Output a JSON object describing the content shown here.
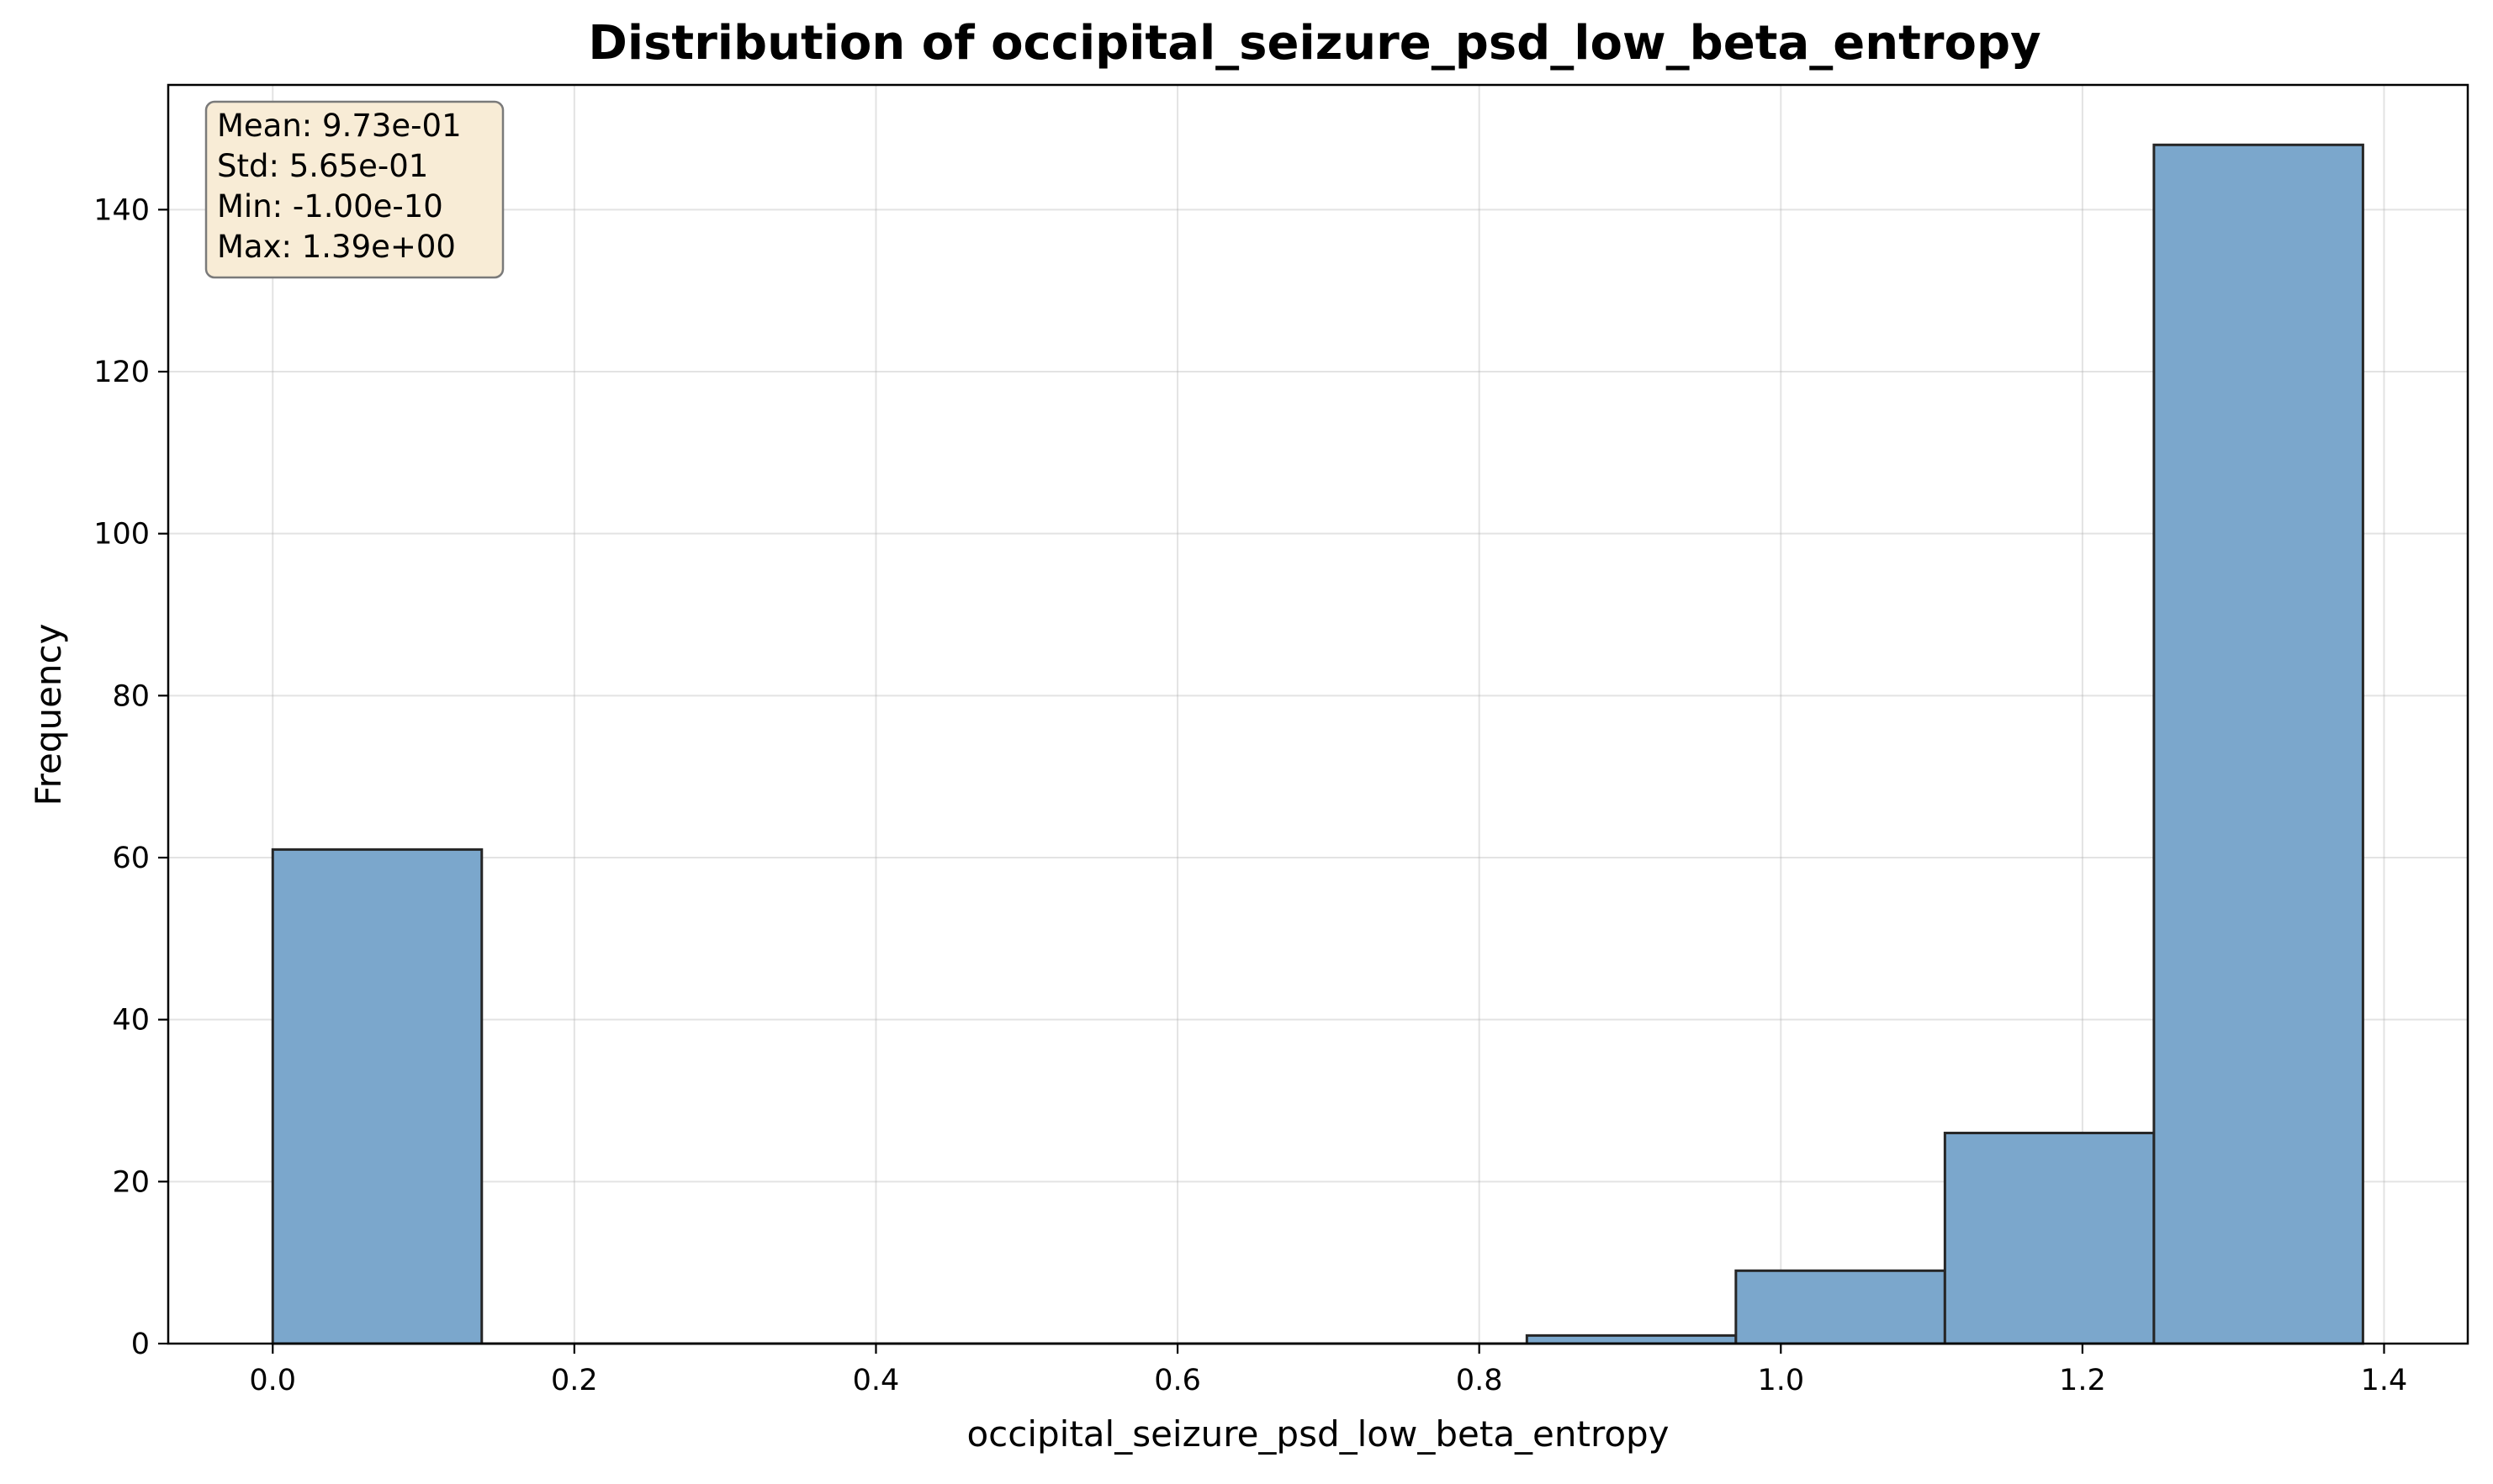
{
  "chart_data": {
    "type": "bar",
    "title": "Distribution of occipital_seizure_psd_low_beta_entropy",
    "xlabel": "occipital_seizure_psd_low_beta_entropy",
    "ylabel": "Frequency",
    "xlim": [
      -0.0693,
      1.4555
    ],
    "ylim": [
      0,
      155.4
    ],
    "x_ticks": [
      "0.0",
      "0.2",
      "0.4",
      "0.6",
      "0.8",
      "1.0",
      "1.2",
      "1.4"
    ],
    "y_ticks": [
      "0",
      "20",
      "40",
      "60",
      "80",
      "100",
      "120",
      "140"
    ],
    "bins": [
      {
        "start": 0.0,
        "end": 0.1386,
        "count": 61
      },
      {
        "start": 0.1386,
        "end": 0.2772,
        "count": 0
      },
      {
        "start": 0.2772,
        "end": 0.4158,
        "count": 0
      },
      {
        "start": 0.4158,
        "end": 0.5544,
        "count": 0
      },
      {
        "start": 0.5544,
        "end": 0.693,
        "count": 0
      },
      {
        "start": 0.693,
        "end": 0.8316,
        "count": 0
      },
      {
        "start": 0.8316,
        "end": 0.9702,
        "count": 1
      },
      {
        "start": 0.9702,
        "end": 1.1088,
        "count": 9
      },
      {
        "start": 1.1088,
        "end": 1.2474,
        "count": 26
      },
      {
        "start": 1.2474,
        "end": 1.386,
        "count": 148
      }
    ],
    "stats_lines": [
      "Mean: 9.73e-01",
      "Std: 5.65e-01",
      "Min: -1.00e-10",
      "Max: 1.39e+00"
    ],
    "grid": true,
    "stats_box_placement": "top-left",
    "colors": {
      "bar_fill": "#7ba7cc",
      "bar_edge": "#262626",
      "stats_box_fill": "#f8ecd6",
      "stats_box_edge": "#7a7a7a"
    }
  }
}
